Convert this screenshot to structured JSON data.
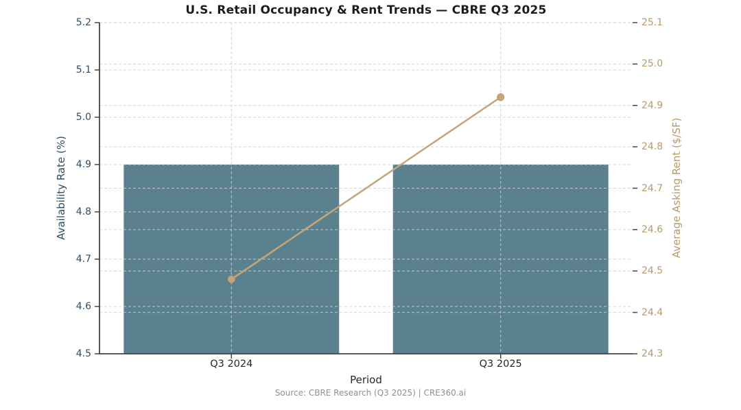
{
  "chart_data": {
    "type": "combo",
    "title": "U.S. Retail Occupancy & Rent Trends — CBRE Q3 2025",
    "categories": [
      "Q3 2024",
      "Q3 2025"
    ],
    "xlabel": "Period",
    "source": "Source: CBRE Research (Q3 2025) | CRE360.ai",
    "series": [
      {
        "name": "Availability Rate",
        "chart_type": "bar",
        "axis": "left",
        "values": [
          4.9,
          4.9
        ],
        "color": "#5b818f"
      },
      {
        "name": "Average Asking Rent",
        "chart_type": "line",
        "axis": "right",
        "values": [
          24.48,
          24.92
        ],
        "color": "#c4a67a",
        "marker": "circle"
      }
    ],
    "left_axis": {
      "label": "Availability Rate (%)",
      "min": 4.5,
      "max": 5.2,
      "ticks": [
        "4.5",
        "4.6",
        "4.7",
        "4.8",
        "4.9",
        "5.0",
        "5.1",
        "5.2"
      ],
      "color": "#2e4d63"
    },
    "right_axis": {
      "label": "Average Asking Rent ($/SF)",
      "min": 24.3,
      "max": 25.1,
      "ticks": [
        "24.3",
        "24.4",
        "24.5",
        "24.6",
        "24.7",
        "24.8",
        "24.9",
        "25.0",
        "25.1"
      ],
      "color": "#b89a68"
    },
    "grid": {
      "style": "dashed",
      "horizontal": "gridlines for both left and right axis ticks",
      "vertical": "gridlines at category centers",
      "color": "#cfcfcf"
    },
    "legend": "none"
  },
  "colors": {
    "bar": "#5b818f",
    "line": "#c4a67a",
    "marker_edge": "#b79a6e",
    "left_text": "#2e4d63",
    "right_text": "#b89a68",
    "title_text": "#1c1c1c",
    "xtick_text": "#262626",
    "grid": "#cfcfcf",
    "spine": "#424242",
    "source_text": "#8f8f8f"
  }
}
